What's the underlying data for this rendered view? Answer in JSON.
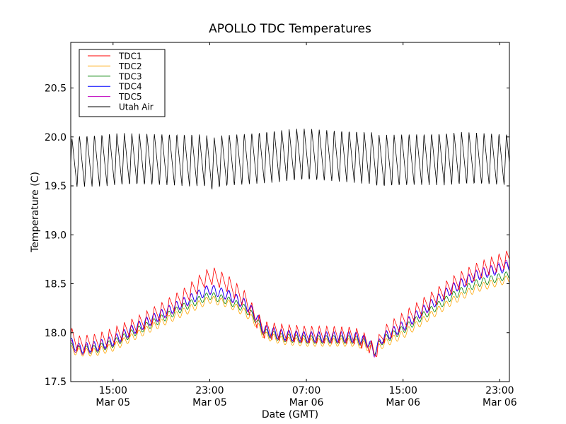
{
  "chart_data": {
    "type": "line",
    "title": "APOLLO TDC Temperatures",
    "xlabel": "Date (GMT)",
    "ylabel": "Temperature (C)",
    "x_units": "hours since Mar 05 00:00 GMT",
    "xlim": [
      11.5,
      47.8
    ],
    "ylim": [
      17.5,
      20.966
    ],
    "grid": false,
    "legend_position": "top-left",
    "yticks": [
      {
        "value": 17.5,
        "label": "17.5"
      },
      {
        "value": 18.0,
        "label": "18.0"
      },
      {
        "value": 18.5,
        "label": "18.5"
      },
      {
        "value": 19.0,
        "label": "19.0"
      },
      {
        "value": 19.5,
        "label": "19.5"
      },
      {
        "value": 20.0,
        "label": "20.0"
      },
      {
        "value": 20.5,
        "label": "20.5"
      }
    ],
    "xticks": [
      {
        "value": 15,
        "time": "15:00",
        "date": "Mar 05"
      },
      {
        "value": 23,
        "time": "23:00",
        "date": "Mar 05"
      },
      {
        "value": 31,
        "time": "07:00",
        "date": "Mar 06"
      },
      {
        "value": 39,
        "time": "15:00",
        "date": "Mar 06"
      },
      {
        "value": 47,
        "time": "23:00",
        "date": "Mar 06"
      }
    ],
    "series": [
      {
        "name": "TDC1",
        "color": "#ff0000",
        "ripple": {
          "amplitude": 0.09,
          "period_hours": 0.62,
          "shape": "sawtooth"
        },
        "points": [
          [
            11.5,
            17.97
          ],
          [
            12.2,
            17.88
          ],
          [
            13.5,
            17.9
          ],
          [
            15,
            17.96
          ],
          [
            17,
            18.08
          ],
          [
            19,
            18.22
          ],
          [
            21,
            18.38
          ],
          [
            22.6,
            18.55
          ],
          [
            23.3,
            18.58
          ],
          [
            24.5,
            18.5
          ],
          [
            26,
            18.33
          ],
          [
            26.8,
            18.15
          ],
          [
            27.5,
            18.03
          ],
          [
            29,
            18.0
          ],
          [
            31,
            17.98
          ],
          [
            33,
            17.98
          ],
          [
            35,
            17.97
          ],
          [
            36.2,
            17.88
          ],
          [
            36.6,
            17.78
          ],
          [
            37.3,
            17.97
          ],
          [
            39,
            18.12
          ],
          [
            41,
            18.3
          ],
          [
            43,
            18.48
          ],
          [
            45,
            18.62
          ],
          [
            47.8,
            18.76
          ]
        ]
      },
      {
        "name": "TDC2",
        "color": "#ffa500",
        "ripple": {
          "amplitude": 0.04,
          "period_hours": 0.62,
          "shape": "sine"
        },
        "points": [
          [
            11.5,
            17.83
          ],
          [
            12.2,
            17.8
          ],
          [
            13.5,
            17.8
          ],
          [
            15,
            17.85
          ],
          [
            17,
            17.98
          ],
          [
            19,
            18.1
          ],
          [
            21,
            18.22
          ],
          [
            23,
            18.34
          ],
          [
            24.5,
            18.3
          ],
          [
            26,
            18.2
          ],
          [
            26.8,
            18.1
          ],
          [
            27.5,
            17.97
          ],
          [
            29,
            17.92
          ],
          [
            31,
            17.9
          ],
          [
            33,
            17.9
          ],
          [
            35,
            17.9
          ],
          [
            36.2,
            17.85
          ],
          [
            36.6,
            17.8
          ],
          [
            37.3,
            17.88
          ],
          [
            39,
            17.98
          ],
          [
            41,
            18.15
          ],
          [
            43,
            18.32
          ],
          [
            45,
            18.45
          ],
          [
            47.8,
            18.55
          ]
        ]
      },
      {
        "name": "TDC3",
        "color": "#008000",
        "ripple": {
          "amplitude": 0.04,
          "period_hours": 0.62,
          "shape": "sine"
        },
        "points": [
          [
            11.5,
            17.86
          ],
          [
            12.2,
            17.82
          ],
          [
            13.5,
            17.83
          ],
          [
            15,
            17.89
          ],
          [
            17,
            18.02
          ],
          [
            19,
            18.14
          ],
          [
            21,
            18.27
          ],
          [
            23,
            18.38
          ],
          [
            24.5,
            18.33
          ],
          [
            26,
            18.24
          ],
          [
            26.8,
            18.14
          ],
          [
            27.5,
            18.0
          ],
          [
            29,
            17.95
          ],
          [
            31,
            17.93
          ],
          [
            33,
            17.93
          ],
          [
            35,
            17.93
          ],
          [
            36.2,
            17.88
          ],
          [
            36.6,
            17.81
          ],
          [
            37.3,
            17.92
          ],
          [
            39,
            18.03
          ],
          [
            41,
            18.2
          ],
          [
            43,
            18.37
          ],
          [
            45,
            18.5
          ],
          [
            47.8,
            18.59
          ]
        ]
      },
      {
        "name": "TDC4",
        "color": "#0000ff",
        "ripple": {
          "amplitude": 0.05,
          "period_hours": 0.62,
          "shape": "sine"
        },
        "points": [
          [
            11.5,
            17.9
          ],
          [
            12.2,
            17.84
          ],
          [
            13.5,
            17.86
          ],
          [
            15,
            17.92
          ],
          [
            17,
            18.06
          ],
          [
            19,
            18.19
          ],
          [
            21,
            18.32
          ],
          [
            23,
            18.44
          ],
          [
            24.5,
            18.39
          ],
          [
            26,
            18.29
          ],
          [
            26.8,
            18.18
          ],
          [
            27.5,
            18.03
          ],
          [
            29,
            17.98
          ],
          [
            31,
            17.96
          ],
          [
            33,
            17.96
          ],
          [
            35,
            17.96
          ],
          [
            36.2,
            17.9
          ],
          [
            36.6,
            17.8
          ],
          [
            37.3,
            17.95
          ],
          [
            39,
            18.07
          ],
          [
            41,
            18.26
          ],
          [
            43,
            18.44
          ],
          [
            45,
            18.58
          ],
          [
            47.8,
            18.68
          ]
        ]
      },
      {
        "name": "TDC5",
        "color": "#bf00bf",
        "ripple": {
          "amplitude": 0.05,
          "period_hours": 0.62,
          "shape": "sine"
        },
        "points": [
          [
            11.5,
            17.88
          ],
          [
            12.2,
            17.82
          ],
          [
            13.5,
            17.85
          ],
          [
            15,
            17.91
          ],
          [
            17,
            18.05
          ],
          [
            19,
            18.18
          ],
          [
            21,
            18.31
          ],
          [
            23,
            18.45
          ],
          [
            24.5,
            18.38
          ],
          [
            26,
            18.28
          ],
          [
            26.8,
            18.17
          ],
          [
            27.5,
            18.02
          ],
          [
            29,
            17.97
          ],
          [
            31,
            17.95
          ],
          [
            33,
            17.95
          ],
          [
            35,
            17.95
          ],
          [
            36.2,
            17.89
          ],
          [
            36.6,
            17.79
          ],
          [
            37.3,
            17.94
          ],
          [
            39,
            18.06
          ],
          [
            41,
            18.25
          ],
          [
            43,
            18.45
          ],
          [
            45,
            18.59
          ],
          [
            47.8,
            18.7
          ]
        ]
      },
      {
        "name": "Utah Air",
        "color": "#000000",
        "ripple": {
          "amplitude": 0.27,
          "period_hours": 0.62,
          "shape": "sawtooth"
        },
        "points": [
          [
            11.5,
            19.72
          ],
          [
            12,
            19.75
          ],
          [
            15,
            19.77
          ],
          [
            20,
            19.77
          ],
          [
            22.5,
            19.76
          ],
          [
            23.2,
            19.72
          ],
          [
            24,
            19.75
          ],
          [
            28,
            19.8
          ],
          [
            31,
            19.82
          ],
          [
            35,
            19.8
          ],
          [
            36.5,
            19.78
          ],
          [
            37,
            19.75
          ],
          [
            40,
            19.77
          ],
          [
            44,
            19.78
          ],
          [
            47.8,
            19.77
          ]
        ]
      }
    ]
  }
}
